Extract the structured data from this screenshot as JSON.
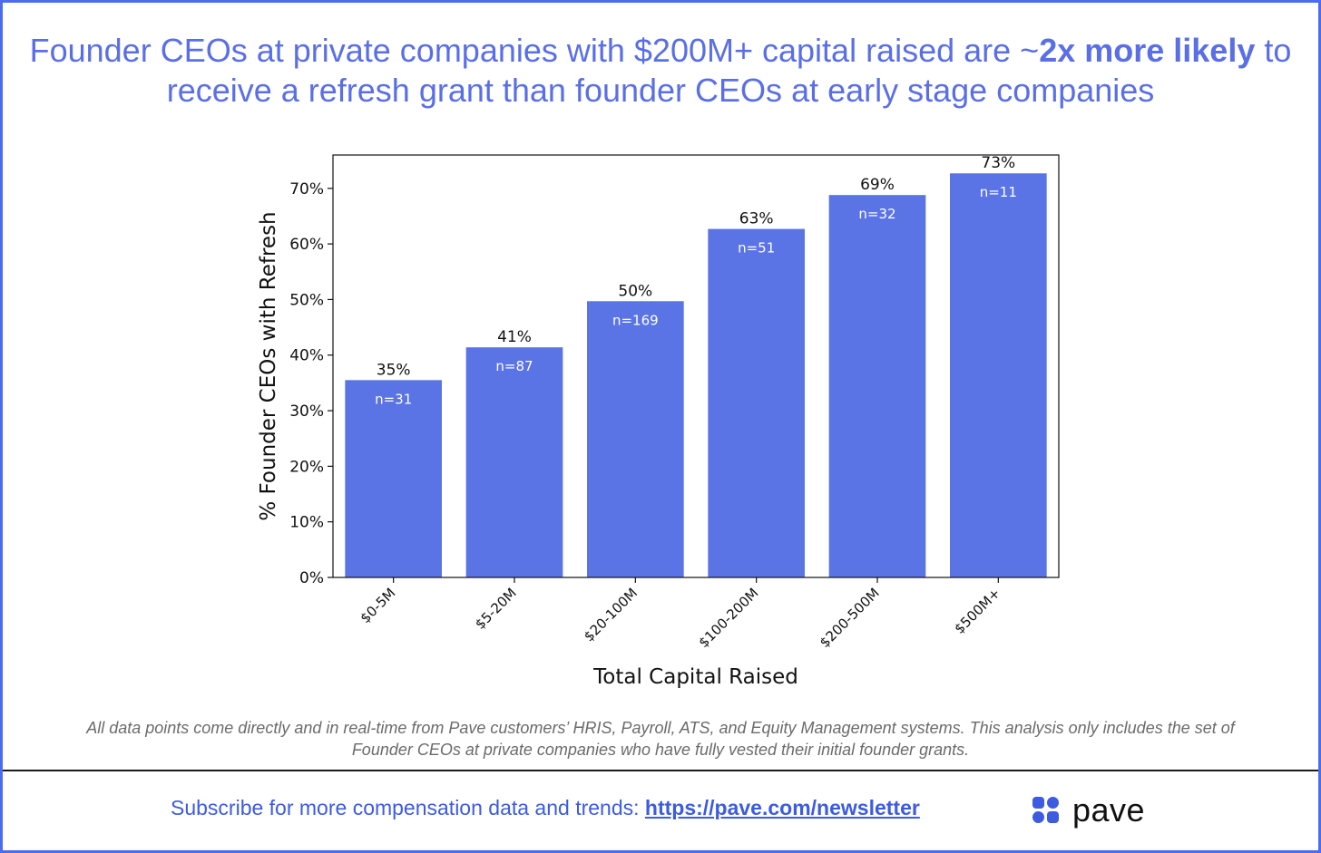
{
  "headline": {
    "part1": "Founder CEOs at private companies with $200M+ capital raised are ~",
    "bold1": "2x more likely",
    "part2": " to receive a refresh grant than founder CEOs at early stage companies"
  },
  "footnote": "All data points come directly and in real-time from Pave customers’ HRIS, Payroll, ATS, and Equity Management systems. This analysis only includes the set of Founder CEOs at private companies who have fully vested their initial founder grants.",
  "footer": {
    "subscribe_text": "Subscribe for more compensation data and trends: ",
    "link_text": "https://pave.com/newsletter",
    "brand": "pave"
  },
  "colors": {
    "bar": "#5a74e6",
    "accent": "#4a6cf0",
    "text": "#111111"
  },
  "icons": [
    "pave-logo-icon"
  ],
  "chart_data": {
    "type": "bar",
    "xlabel": "Total Capital Raised",
    "ylabel": "% Founder CEOs with Refresh",
    "categories": [
      "$0-5M",
      "$5-20M",
      "$20-100M",
      "$100-200M",
      "$200-500M",
      "$500M+"
    ],
    "values": [
      35.5,
      41.4,
      49.7,
      62.7,
      68.8,
      72.7
    ],
    "value_labels": [
      "35%",
      "41%",
      "50%",
      "63%",
      "69%",
      "73%"
    ],
    "n_labels": [
      "n=31",
      "n=87",
      "n=169",
      "n=51",
      "n=32",
      "n=11"
    ],
    "yticks": [
      "0%",
      "10%",
      "20%",
      "30%",
      "40%",
      "50%",
      "60%",
      "70%"
    ],
    "ylim": [
      0,
      76
    ],
    "grid": false,
    "legend": "none"
  }
}
